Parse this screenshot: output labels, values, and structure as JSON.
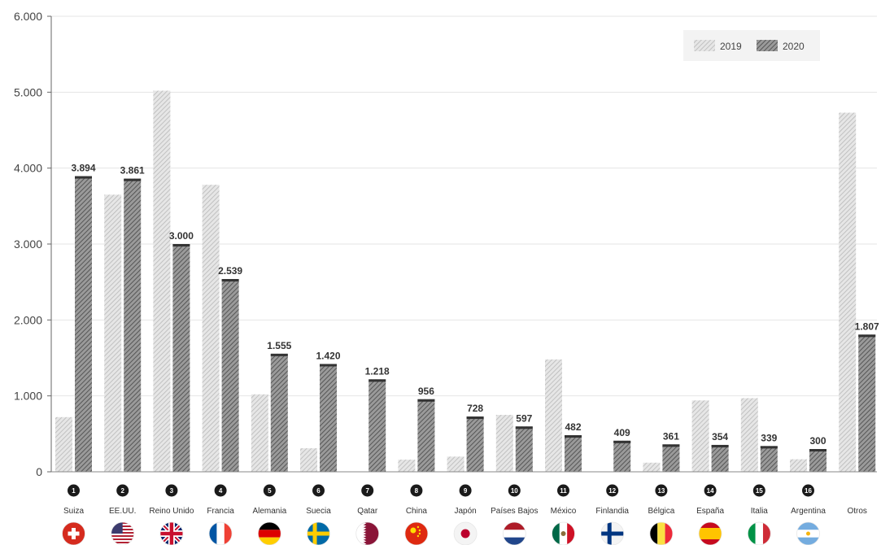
{
  "chart_data": {
    "type": "bar",
    "ylim": [
      0,
      6000
    ],
    "yticks": [
      "0",
      "1.000",
      "2.000",
      "3.000",
      "4.000",
      "5.000",
      "6.000"
    ],
    "legend_placement": "top-right",
    "grid": true,
    "categories": [
      "Suiza",
      "EE.UU.",
      "Reino Unido",
      "Francia",
      "Alemania",
      "Suecia",
      "Qatar",
      "China",
      "Japón",
      "Países Bajos",
      "México",
      "Finlandia",
      "Bélgica",
      "España",
      "Italia",
      "Argentina",
      "Otros"
    ],
    "ranks": [
      "1",
      "2",
      "3",
      "4",
      "5",
      "6",
      "7",
      "8",
      "9",
      "10",
      "11",
      "12",
      "13",
      "14",
      "15",
      "16",
      ""
    ],
    "series": [
      {
        "name": "2019",
        "values": [
          720,
          3650,
          5020,
          3780,
          1020,
          310,
          5,
          160,
          200,
          750,
          1480,
          5,
          120,
          940,
          970,
          165,
          4730
        ]
      },
      {
        "name": "2020",
        "values": [
          3894,
          3861,
          3000,
          2539,
          1555,
          1420,
          1218,
          956,
          728,
          597,
          482,
          409,
          361,
          354,
          339,
          300,
          1807
        ]
      }
    ],
    "labels_2020": [
      "3.894",
      "3.861",
      "3.000",
      "2.539",
      "1.555",
      "1.420",
      "1.218",
      "956",
      "728",
      "597",
      "482",
      "409",
      "361",
      "354",
      "339",
      "300",
      "1.807"
    ]
  },
  "colors": {
    "bar_2019": "#d6d6d6",
    "bar_2020": "#7a7a7a",
    "cap_2020": "#333333",
    "rank_circle": "#1a1a1a"
  },
  "flags": [
    "switzerland-flag",
    "usa-flag",
    "uk-flag",
    "france-flag",
    "germany-flag",
    "sweden-flag",
    "qatar-flag",
    "china-flag",
    "japan-flag",
    "netherlands-flag",
    "mexico-flag",
    "finland-flag",
    "belgium-flag",
    "spain-flag",
    "italy-flag",
    "argentina-flag"
  ]
}
